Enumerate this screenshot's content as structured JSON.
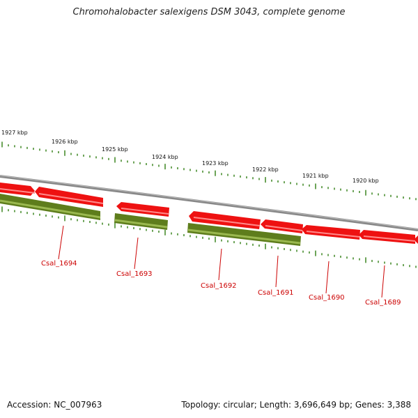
{
  "title": "Chromohalobacter salexigens DSM 3043, complete genome",
  "footer": {
    "accession": "Accession: NC_007963",
    "topology": "Topology: circular; Length: 3,696,649 bp; Genes: 3,388"
  },
  "colors": {
    "backbone": "#888888",
    "forward_gene": "#ee1111",
    "reverse_gene": "#5e7d1c",
    "tick": "#2e7d10",
    "label": "#cc0000"
  },
  "scale_ticks": [
    {
      "label": "1927 kbp",
      "kbp": 1927
    },
    {
      "label": "1926 kbp",
      "kbp": 1926
    },
    {
      "label": "1925 kbp",
      "kbp": 1925
    },
    {
      "label": "1924 kbp",
      "kbp": 1924
    },
    {
      "label": "1923 kbp",
      "kbp": 1923
    },
    {
      "label": "1922 kbp",
      "kbp": 1922
    },
    {
      "label": "1921 kbp",
      "kbp": 1921
    },
    {
      "label": "1920 kbp",
      "kbp": 1920
    }
  ],
  "gene_labels": [
    "Csal_1694",
    "Csal_1693",
    "Csal_1692",
    "Csal_1691",
    "Csal_1690",
    "Csal_1689"
  ]
}
